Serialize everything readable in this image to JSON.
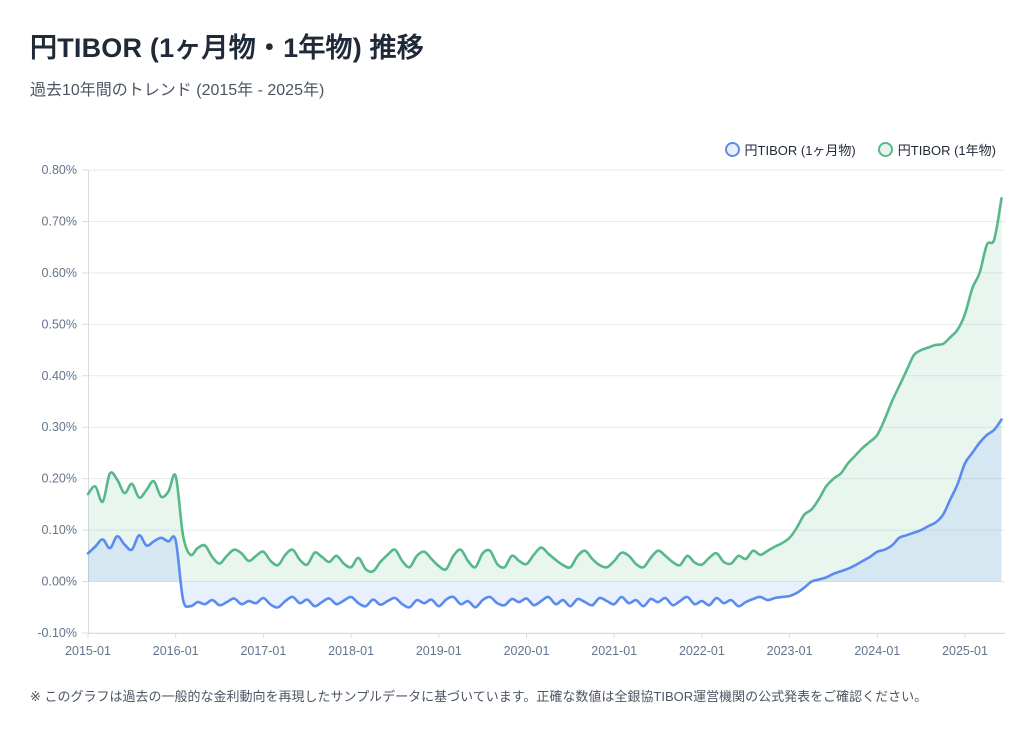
{
  "header": {
    "title": "円TIBOR (1ヶ月物・1年物) 推移",
    "subtitle": "過去10年間のトレンド (2015年 - 2025年)"
  },
  "footnote": "※ このグラフは過去の一般的な金利動向を再現したサンプルデータに基づいています。正確な数値は全銀協TIBOR運営機関の公式発表をご確認ください。",
  "chart_data": {
    "type": "line",
    "title": "円TIBOR (1ヶ月物・1年物) 推移",
    "subtitle": "過去10年間のトレンド (2015年 - 2025年)",
    "x_unit": "month",
    "x_start": "2015-01",
    "x_points": 126,
    "x_tick_labels": [
      "2015-01",
      "2016-01",
      "2017-01",
      "2018-01",
      "2019-01",
      "2020-01",
      "2021-01",
      "2022-01",
      "2023-01",
      "2024-01",
      "2025-01"
    ],
    "x_tick_every_months": 12,
    "ylabel": "",
    "xlabel": "",
    "ylim": [
      -0.1,
      0.8
    ],
    "y_ticks": [
      0.8,
      0.7,
      0.6,
      0.5,
      0.4,
      0.3,
      0.2,
      0.1,
      0.0,
      -0.1
    ],
    "y_tick_labels": [
      "0.80%",
      "0.70%",
      "0.60%",
      "0.50%",
      "0.40%",
      "0.30%",
      "0.20%",
      "0.10%",
      "0.00%",
      "-0.10%"
    ],
    "grid": "horizontal-only",
    "legend_position": "top-right",
    "fill_baseline": 0.0,
    "series": [
      {
        "name": "円TIBOR (1ヶ月物)",
        "color": "#5a8bee",
        "fill_color": "rgba(90,139,238,0.14)",
        "values": [
          0.055,
          0.068,
          0.082,
          0.065,
          0.088,
          0.072,
          0.062,
          0.09,
          0.07,
          0.078,
          0.085,
          0.078,
          0.08,
          -0.035,
          -0.048,
          -0.04,
          -0.044,
          -0.036,
          -0.046,
          -0.04,
          -0.033,
          -0.044,
          -0.038,
          -0.042,
          -0.032,
          -0.045,
          -0.05,
          -0.038,
          -0.03,
          -0.042,
          -0.035,
          -0.048,
          -0.04,
          -0.033,
          -0.044,
          -0.037,
          -0.03,
          -0.042,
          -0.048,
          -0.035,
          -0.045,
          -0.038,
          -0.032,
          -0.044,
          -0.05,
          -0.036,
          -0.042,
          -0.035,
          -0.048,
          -0.035,
          -0.03,
          -0.044,
          -0.038,
          -0.05,
          -0.036,
          -0.03,
          -0.042,
          -0.046,
          -0.034,
          -0.04,
          -0.033,
          -0.046,
          -0.038,
          -0.03,
          -0.044,
          -0.036,
          -0.048,
          -0.034,
          -0.04,
          -0.046,
          -0.032,
          -0.038,
          -0.044,
          -0.03,
          -0.042,
          -0.036,
          -0.048,
          -0.034,
          -0.04,
          -0.032,
          -0.046,
          -0.038,
          -0.03,
          -0.044,
          -0.038,
          -0.046,
          -0.032,
          -0.042,
          -0.036,
          -0.048,
          -0.04,
          -0.034,
          -0.03,
          -0.036,
          -0.032,
          -0.03,
          -0.028,
          -0.022,
          -0.012,
          0.0,
          0.004,
          0.008,
          0.015,
          0.02,
          0.025,
          0.032,
          0.04,
          0.048,
          0.058,
          0.062,
          0.07,
          0.085,
          0.09,
          0.095,
          0.1,
          0.108,
          0.115,
          0.13,
          0.16,
          0.19,
          0.23,
          0.25,
          0.27,
          0.285,
          0.295,
          0.315
        ]
      },
      {
        "name": "円TIBOR (1年物)",
        "color": "#57b88a",
        "fill_color": "rgba(87,184,138,0.13)",
        "values": [
          0.17,
          0.185,
          0.155,
          0.21,
          0.198,
          0.172,
          0.19,
          0.163,
          0.178,
          0.195,
          0.165,
          0.175,
          0.205,
          0.09,
          0.052,
          0.065,
          0.07,
          0.048,
          0.035,
          0.05,
          0.062,
          0.055,
          0.04,
          0.05,
          0.058,
          0.04,
          0.032,
          0.052,
          0.062,
          0.042,
          0.033,
          0.056,
          0.048,
          0.038,
          0.05,
          0.035,
          0.028,
          0.046,
          0.024,
          0.02,
          0.038,
          0.052,
          0.062,
          0.04,
          0.028,
          0.05,
          0.058,
          0.044,
          0.03,
          0.024,
          0.05,
          0.062,
          0.04,
          0.028,
          0.055,
          0.06,
          0.034,
          0.028,
          0.05,
          0.04,
          0.034,
          0.052,
          0.066,
          0.054,
          0.042,
          0.032,
          0.028,
          0.05,
          0.06,
          0.044,
          0.032,
          0.028,
          0.04,
          0.056,
          0.05,
          0.034,
          0.028,
          0.046,
          0.06,
          0.05,
          0.038,
          0.032,
          0.05,
          0.037,
          0.033,
          0.046,
          0.055,
          0.038,
          0.035,
          0.05,
          0.044,
          0.06,
          0.052,
          0.06,
          0.068,
          0.075,
          0.085,
          0.105,
          0.13,
          0.14,
          0.16,
          0.185,
          0.2,
          0.21,
          0.23,
          0.245,
          0.26,
          0.272,
          0.285,
          0.315,
          0.35,
          0.38,
          0.41,
          0.44,
          0.45,
          0.455,
          0.46,
          0.462,
          0.475,
          0.49,
          0.52,
          0.57,
          0.6,
          0.655,
          0.665,
          0.745
        ]
      }
    ],
    "colors": {
      "line_1m": "#5a8bee",
      "line_1y": "#57b88a",
      "grid": "#e8eaee",
      "axis": "#d9dde2",
      "tick_text": "#64748b"
    }
  }
}
